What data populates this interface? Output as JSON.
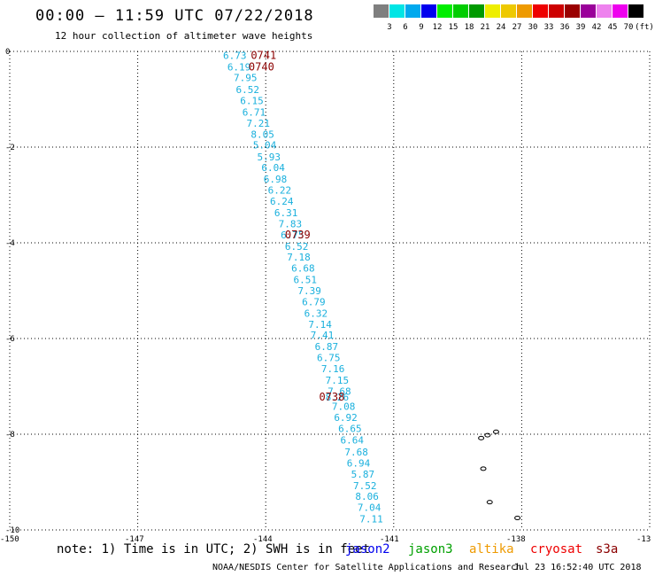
{
  "header": {
    "title": "00:00 – 11:59 UTC 07/22/2018",
    "subtitle": "12 hour collection of altimeter wave heights"
  },
  "color_scale": {
    "colors": [
      "#7f7f7f",
      "#00e5e5",
      "#00a9ee",
      "#0000ee",
      "#00ee00",
      "#00cd00",
      "#009a00",
      "#eeee00",
      "#eec900",
      "#ee9a00",
      "#ee0000",
      "#cd0000",
      "#9a0000",
      "#9a009a",
      "#ee82ee",
      "#ee00ee",
      "#000000"
    ],
    "labels": [
      "3",
      "6",
      "9",
      "12",
      "15",
      "18",
      "21",
      "24",
      "27",
      "30",
      "33",
      "36",
      "39",
      "42",
      "45",
      "70",
      "(ft)"
    ]
  },
  "map": {
    "lon_ticks": [
      "-150",
      "-147",
      "-144",
      "-141",
      "-138",
      "-13"
    ],
    "lat_ticks": [
      "0",
      "-2",
      "-4",
      "-6",
      "-8",
      "-10"
    ],
    "lon_range": [
      -150,
      -135
    ],
    "lat_range": [
      -10,
      0
    ],
    "grid": true,
    "swh_color": "#1ab0dd",
    "time_color": "#8b0000",
    "swh_track": [
      {
        "lon": -145.0,
        "lat": -0.08,
        "v": "6.73"
      },
      {
        "lon": -144.9,
        "lat": -0.32,
        "v": "6.19"
      },
      {
        "lon": -144.75,
        "lat": -0.55,
        "v": "7.95"
      },
      {
        "lon": -144.7,
        "lat": -0.8,
        "v": "6.52"
      },
      {
        "lon": -144.6,
        "lat": -1.03,
        "v": "6.15"
      },
      {
        "lon": -144.55,
        "lat": -1.27,
        "v": "6.71"
      },
      {
        "lon": -144.45,
        "lat": -1.5,
        "v": "7.21"
      },
      {
        "lon": -144.35,
        "lat": -1.73,
        "v": "8.05"
      },
      {
        "lon": -144.3,
        "lat": -1.95,
        "v": "5.04"
      },
      {
        "lon": -144.2,
        "lat": -2.2,
        "v": "5.93"
      },
      {
        "lon": -144.1,
        "lat": -2.43,
        "v": "6.04"
      },
      {
        "lon": -144.05,
        "lat": -2.67,
        "v": "6.98"
      },
      {
        "lon": -143.95,
        "lat": -2.9,
        "v": "6.22"
      },
      {
        "lon": -143.9,
        "lat": -3.13,
        "v": "6.24"
      },
      {
        "lon": -143.8,
        "lat": -3.37,
        "v": "6.31"
      },
      {
        "lon": -143.7,
        "lat": -3.6,
        "v": "7.83"
      },
      {
        "lon": -143.65,
        "lat": -3.83,
        "v": "6.75"
      },
      {
        "lon": -143.55,
        "lat": -4.07,
        "v": "6.52"
      },
      {
        "lon": -143.5,
        "lat": -4.3,
        "v": "7.18"
      },
      {
        "lon": -143.4,
        "lat": -4.53,
        "v": "6.68"
      },
      {
        "lon": -143.35,
        "lat": -4.77,
        "v": "6.51"
      },
      {
        "lon": -143.25,
        "lat": -5.0,
        "v": "7.39"
      },
      {
        "lon": -143.15,
        "lat": -5.23,
        "v": "6.79"
      },
      {
        "lon": -143.1,
        "lat": -5.47,
        "v": "6.32"
      },
      {
        "lon": -143.0,
        "lat": -5.7,
        "v": "7.14"
      },
      {
        "lon": -142.95,
        "lat": -5.93,
        "v": "7.41"
      },
      {
        "lon": -142.85,
        "lat": -6.17,
        "v": "6.87"
      },
      {
        "lon": -142.8,
        "lat": -6.4,
        "v": "6.75"
      },
      {
        "lon": -142.7,
        "lat": -6.63,
        "v": "7.16"
      },
      {
        "lon": -142.6,
        "lat": -6.87,
        "v": "7.15"
      },
      {
        "lon": -142.55,
        "lat": -7.1,
        "v": "7.68"
      },
      {
        "lon": -142.6,
        "lat": -7.22,
        "v": "8.26"
      },
      {
        "lon": -142.45,
        "lat": -7.42,
        "v": "7.08"
      },
      {
        "lon": -142.4,
        "lat": -7.65,
        "v": "6.92"
      },
      {
        "lon": -142.3,
        "lat": -7.88,
        "v": "6.65"
      },
      {
        "lon": -142.25,
        "lat": -8.12,
        "v": "6.64"
      },
      {
        "lon": -142.15,
        "lat": -8.37,
        "v": "7.68"
      },
      {
        "lon": -142.1,
        "lat": -8.6,
        "v": "6.94"
      },
      {
        "lon": -142.0,
        "lat": -8.83,
        "v": "5.87"
      },
      {
        "lon": -141.95,
        "lat": -9.07,
        "v": "7.52"
      },
      {
        "lon": -141.9,
        "lat": -9.3,
        "v": "8.06"
      },
      {
        "lon": -141.85,
        "lat": -9.53,
        "v": "7.04"
      },
      {
        "lon": -141.8,
        "lat": -9.77,
        "v": "7.11"
      }
    ],
    "time_labels": [
      {
        "lon": -144.35,
        "lat": -0.08,
        "v": "0741"
      },
      {
        "lon": -144.4,
        "lat": -0.32,
        "v": "0740"
      },
      {
        "lon": -143.55,
        "lat": -3.83,
        "v": "0739"
      },
      {
        "lon": -142.75,
        "lat": -7.22,
        "v": "0738"
      }
    ],
    "islands": [
      {
        "lon": -138.8,
        "lat": -8.02
      },
      {
        "lon": -138.95,
        "lat": -8.08
      },
      {
        "lon": -138.6,
        "lat": -7.95
      },
      {
        "lon": -138.9,
        "lat": -8.72
      },
      {
        "lon": -138.75,
        "lat": -9.42
      },
      {
        "lon": -138.1,
        "lat": -9.75
      }
    ]
  },
  "legend": {
    "note": "note: 1) Time is in UTC; 2) SWH is in feet",
    "satellites": [
      {
        "name": "jason2",
        "color": "#0000ee"
      },
      {
        "name": "jason3",
        "color": "#00a000"
      },
      {
        "name": "altika",
        "color": "#ee9a00"
      },
      {
        "name": "cryosat",
        "color": "#ee0000"
      },
      {
        "name": "s3a",
        "color": "#8b0000"
      }
    ]
  },
  "footer": {
    "left": "NOAA/NESDIS Center for Satellite Applications and Research",
    "right": "Jul 23 16:52:40 UTC 2018"
  }
}
